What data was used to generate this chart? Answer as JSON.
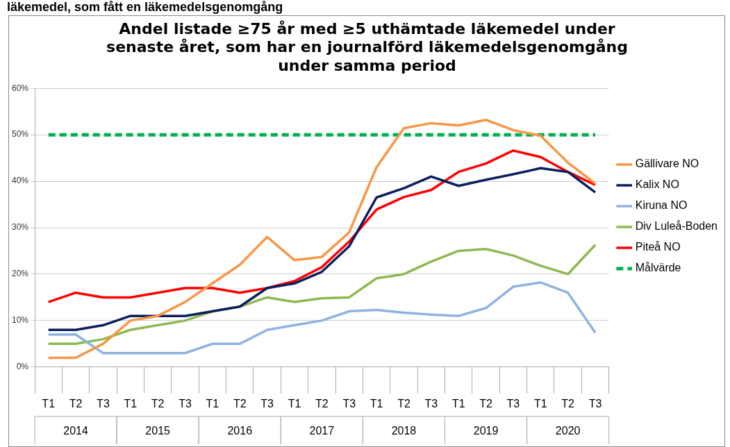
{
  "chart_data": {
    "type": "line",
    "title": "Andel listade ≥75 år med ≥5 uthämtade läkemedel under senaste året, som har en journalförd läkemedelsgenomgång under samma period",
    "categories": [
      "T1",
      "T2",
      "T3",
      "T1",
      "T2",
      "T3",
      "T1",
      "T2",
      "T3",
      "T1",
      "T2",
      "T3",
      "T1",
      "T2",
      "T3",
      "T1",
      "T2",
      "T3",
      "T1",
      "T2",
      "T3"
    ],
    "series": [
      {
        "name": "Gällivare NO",
        "color": "#f79646",
        "values": [
          2,
          2,
          5,
          10,
          11,
          14,
          18,
          22,
          28,
          23,
          23.7,
          29,
          43,
          51.4,
          52.5,
          52,
          53.2,
          51,
          49.8,
          44,
          39.5
        ]
      },
      {
        "name": "Kalix NO",
        "color": "#0a1f5c",
        "values": [
          8,
          8,
          9,
          11,
          11,
          11,
          12,
          13,
          17,
          18,
          20.5,
          26,
          36.5,
          38.5,
          41,
          39,
          40.3,
          41.5,
          42.8,
          42,
          37.6
        ]
      },
      {
        "name": "Kiruna NO",
        "color": "#8db3e2",
        "values": [
          7,
          7,
          3,
          3,
          3,
          3,
          5,
          5,
          8,
          9,
          10,
          12,
          12.3,
          11.7,
          11.3,
          11,
          12.7,
          17.3,
          18.2,
          16,
          7.4
        ]
      },
      {
        "name": "Div Luleå-Boden",
        "color": "#8fb84f",
        "values": [
          5,
          5,
          6,
          8,
          9,
          10,
          12,
          13,
          15,
          14,
          14.8,
          15,
          19.1,
          20,
          22.7,
          25,
          25.4,
          24,
          21.8,
          20,
          26.3
        ]
      },
      {
        "name": "Piteå NO",
        "color": "#ff0000",
        "values": [
          14,
          16,
          15,
          15,
          16,
          17,
          17,
          16,
          17,
          18.5,
          21.5,
          27,
          33.9,
          36.6,
          38.1,
          42,
          43.8,
          46.6,
          45.2,
          42,
          39.2
        ]
      },
      {
        "name": "Målvärde",
        "color": "#00b050",
        "line_style": "dashed",
        "values": [
          50,
          50,
          50,
          50,
          50,
          50,
          50,
          50,
          50,
          50,
          50,
          50,
          50,
          50,
          50,
          50,
          50,
          50,
          50,
          50,
          50
        ]
      }
    ],
    "ylim": [
      0,
      60
    ],
    "yticks": [
      {
        "value": 0,
        "label": "0%"
      },
      {
        "value": 10,
        "label": "10%"
      },
      {
        "value": 20,
        "label": "20%"
      },
      {
        "value": 30,
        "label": "30%"
      },
      {
        "value": 40,
        "label": "40%"
      },
      {
        "value": 50,
        "label": "50%"
      },
      {
        "value": 60,
        "label": "60%"
      }
    ],
    "grid": "y",
    "legend": "right",
    "marker": "none",
    "annotations": [
      "läkemedel, som fått en läkemedelsgenomgång",
      "2014",
      "2015",
      "2016",
      "2017",
      "2018",
      "2019",
      "2020"
    ]
  }
}
